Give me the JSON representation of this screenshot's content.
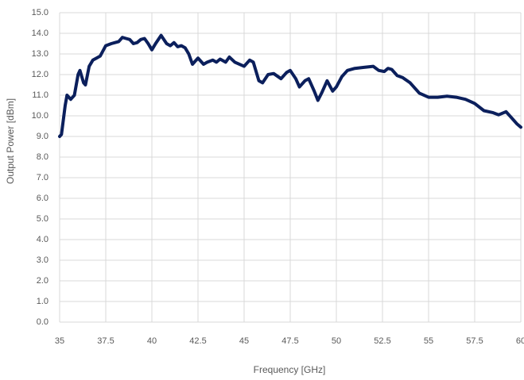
{
  "chart_data": {
    "type": "line",
    "x_label": "Frequency [GHz]",
    "y_label": "Output Power [dBm]",
    "color": "#0b1f5c",
    "grid": true,
    "xlim": [
      35,
      60
    ],
    "xticks": [
      35,
      37.5,
      40,
      42.5,
      45,
      47.5,
      50,
      52.5,
      55,
      57.5,
      60
    ],
    "ylim": [
      0,
      15
    ],
    "yticks": [
      {
        "value": 0,
        "label": "0.0"
      },
      {
        "value": 1,
        "label": "1.0"
      },
      {
        "value": 2,
        "label": "2.0"
      },
      {
        "value": 3,
        "label": "3.0"
      },
      {
        "value": 4,
        "label": "4.0"
      },
      {
        "value": 5,
        "label": "5.0"
      },
      {
        "value": 6,
        "label": "6.0"
      },
      {
        "value": 7,
        "label": "7.0"
      },
      {
        "value": 8,
        "label": "8.0"
      },
      {
        "value": 9,
        "label": "9.0"
      },
      {
        "value": 10,
        "label": "10.0"
      },
      {
        "value": 11,
        "label": "11.0"
      },
      {
        "value": 12,
        "label": "12.0"
      },
      {
        "value": 13,
        "label": "13.0"
      },
      {
        "value": 14,
        "label": "14.0"
      },
      {
        "value": 15,
        "label": "15.0"
      }
    ],
    "x": [
      35,
      35.1,
      35.3,
      35.4,
      35.6,
      35.8,
      36.0,
      36.1,
      36.3,
      36.4,
      36.6,
      36.8,
      37.0,
      37.2,
      37.5,
      37.8,
      38.0,
      38.2,
      38.4,
      38.6,
      38.8,
      39.0,
      39.2,
      39.4,
      39.6,
      39.8,
      40.0,
      40.2,
      40.5,
      40.8,
      41.0,
      41.2,
      41.4,
      41.6,
      41.8,
      42.0,
      42.2,
      42.5,
      42.8,
      43.0,
      43.3,
      43.5,
      43.7,
      44.0,
      44.2,
      44.5,
      45.0,
      45.3,
      45.5,
      45.8,
      46.0,
      46.3,
      46.6,
      47.0,
      47.3,
      47.5,
      47.8,
      48.0,
      48.3,
      48.5,
      48.8,
      49.0,
      49.2,
      49.5,
      49.8,
      50.0,
      50.3,
      50.6,
      51.0,
      51.5,
      52.0,
      52.3,
      52.6,
      52.8,
      53.0,
      53.3,
      53.6,
      54.0,
      54.5,
      55.0,
      55.5,
      56.0,
      56.5,
      57.0,
      57.5,
      58.0,
      58.5,
      58.8,
      59.2,
      59.5,
      59.8,
      60.0
    ],
    "values": [
      9.0,
      9.1,
      10.5,
      11.0,
      10.8,
      11.0,
      12.0,
      12.2,
      11.6,
      11.5,
      12.4,
      12.7,
      12.8,
      12.9,
      13.4,
      13.5,
      13.55,
      13.6,
      13.8,
      13.75,
      13.7,
      13.5,
      13.55,
      13.7,
      13.75,
      13.5,
      13.2,
      13.5,
      13.9,
      13.5,
      13.4,
      13.55,
      13.35,
      13.4,
      13.3,
      13.0,
      12.5,
      12.8,
      12.5,
      12.6,
      12.7,
      12.6,
      12.75,
      12.6,
      12.85,
      12.6,
      12.4,
      12.7,
      12.6,
      11.7,
      11.6,
      12.0,
      12.05,
      11.8,
      12.1,
      12.2,
      11.8,
      11.4,
      11.7,
      11.8,
      11.2,
      10.75,
      11.1,
      11.7,
      11.2,
      11.4,
      11.9,
      12.2,
      12.3,
      12.35,
      12.4,
      12.2,
      12.15,
      12.3,
      12.25,
      11.95,
      11.85,
      11.6,
      11.1,
      10.9,
      10.9,
      10.95,
      10.9,
      10.8,
      10.6,
      10.25,
      10.15,
      10.05,
      10.2,
      9.9,
      9.6,
      9.45
    ]
  }
}
